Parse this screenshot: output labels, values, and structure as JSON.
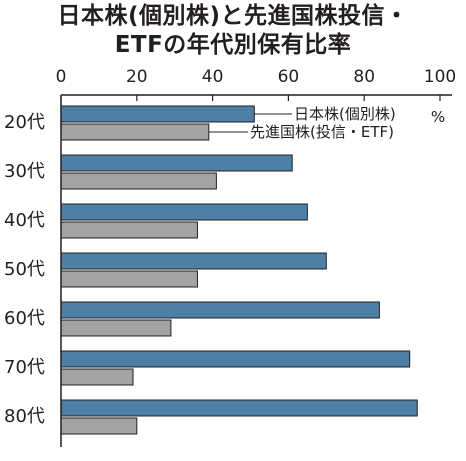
{
  "chart_data": {
    "type": "bar",
    "orientation": "horizontal",
    "title": [
      "日本株(個別株)と先進国株投信・",
      "ETFの年代別保有比率"
    ],
    "unit": "%",
    "categories": [
      "20代",
      "30代",
      "40代",
      "50代",
      "60代",
      "70代",
      "80代"
    ],
    "series": [
      {
        "name": "日本株(個別株)",
        "color": "#4e7fa4",
        "values": [
          51,
          61,
          65,
          70,
          84,
          92,
          94
        ]
      },
      {
        "name": "先進国株(投信・ETF)",
        "color": "#a2a3a5",
        "values": [
          39,
          41,
          36,
          36,
          29,
          19,
          20
        ]
      }
    ],
    "xticks": [
      0,
      20,
      40,
      60,
      80,
      100
    ],
    "xlim": [
      0,
      100
    ],
    "grid": false,
    "legend": "inline labels on the 20代 bars"
  }
}
